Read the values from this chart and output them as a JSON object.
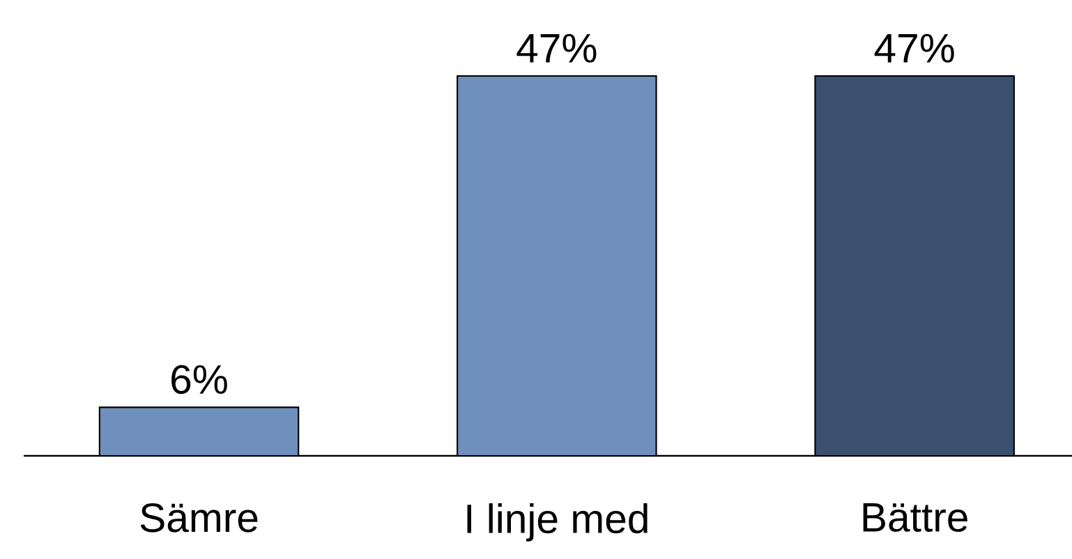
{
  "chart_data": {
    "type": "bar",
    "categories": [
      "Sämre",
      "I linje med",
      "Bättre"
    ],
    "values": [
      6,
      47,
      47
    ],
    "value_labels": [
      "6%",
      "47%",
      "47%"
    ],
    "colors": [
      "#6f8fbc",
      "#6f8fbc",
      "#3b4f6e"
    ]
  }
}
